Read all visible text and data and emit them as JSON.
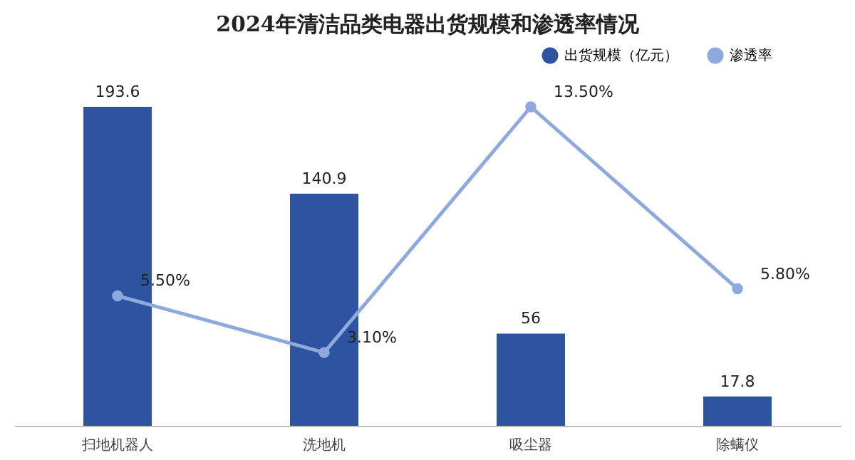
{
  "chart_data": {
    "type": "bar",
    "title": "2024年清洁品类电器出货规模和渗透率情况",
    "categories": [
      "扫地机器人",
      "洗地机",
      "吸尘器",
      "除螨仪"
    ],
    "series": [
      {
        "name": "出货规模（亿元）",
        "color": "#2e54a1",
        "values": [
          193.6,
          140.9,
          56,
          17.8
        ]
      },
      {
        "name": "渗透率",
        "type": "line",
        "axis": "y2",
        "color": "#8eaadc",
        "values": [
          5.5,
          3.1,
          13.5,
          5.8
        ],
        "value_labels": [
          "5.50%",
          "3.10%",
          "13.50%",
          "5.80%"
        ]
      }
    ],
    "tick_labels": "x",
    "data_labels": true,
    "legend": "top right",
    "marker": "circle",
    "line_style": "solid"
  }
}
